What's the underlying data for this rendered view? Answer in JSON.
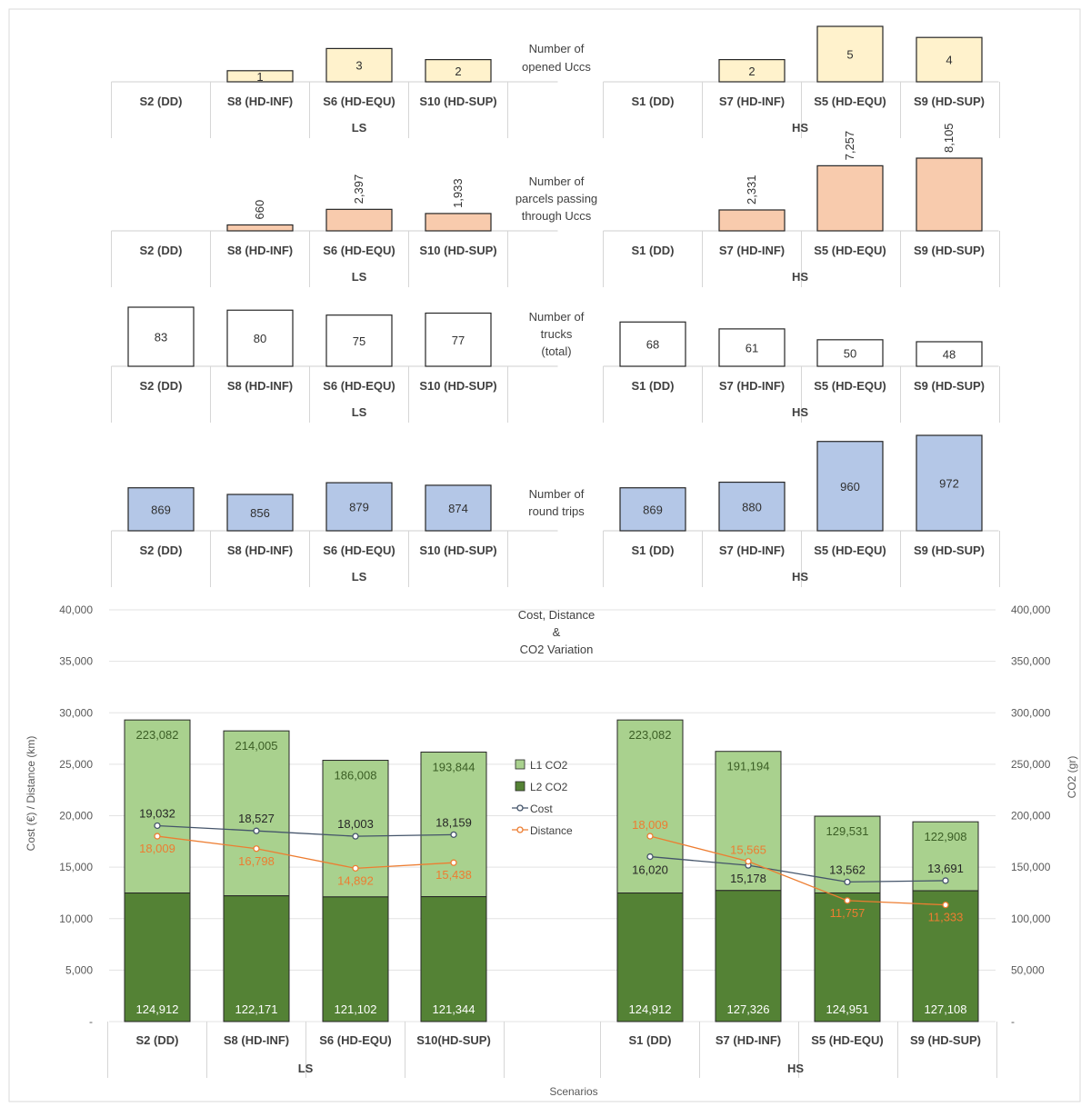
{
  "chart_data": [
    {
      "type": "bar",
      "title": "Number of opened Uccs",
      "groups": [
        {
          "label": "LS",
          "categories": [
            "S2 (DD)",
            "S8 (HD-INF)",
            "S6 (HD-EQU)",
            "S10 (HD-SUP)"
          ],
          "values": [
            null,
            1,
            3,
            2
          ]
        },
        {
          "label": "HS",
          "categories": [
            "S1 (DD)",
            "S7 (HD-INF)",
            "S5 (HD-EQU)",
            "S9 (HD-SUP)"
          ],
          "values": [
            null,
            2,
            5,
            4
          ]
        }
      ],
      "bar_color": "#fff2cc",
      "label_rotation": 0
    },
    {
      "type": "bar",
      "title": "Number of parcels passing through Uccs",
      "groups": [
        {
          "label": "LS",
          "categories": [
            "S2 (DD)",
            "S8 (HD-INF)",
            "S6 (HD-EQU)",
            "S10 (HD-SUP)"
          ],
          "values": [
            null,
            660,
            2397,
            1933
          ]
        },
        {
          "label": "HS",
          "categories": [
            "S1 (DD)",
            "S7 (HD-INF)",
            "S5 (HD-EQU)",
            "S9 (HD-SUP)"
          ],
          "values": [
            null,
            2331,
            7257,
            8105
          ]
        }
      ],
      "value_labels": {
        "LS": [
          "",
          "660",
          "2,397",
          "1,933"
        ],
        "HS": [
          "",
          "2,331",
          "7,257",
          "8,105"
        ]
      },
      "bar_color": "#f8cbad",
      "label_rotation": -90
    },
    {
      "type": "bar",
      "title": "Number of trucks (total)",
      "groups": [
        {
          "label": "LS",
          "categories": [
            "S2 (DD)",
            "S8 (HD-INF)",
            "S6 (HD-EQU)",
            "S10 (HD-SUP)"
          ],
          "values": [
            83,
            80,
            75,
            77
          ]
        },
        {
          "label": "HS",
          "categories": [
            "S1 (DD)",
            "S7 (HD-INF)",
            "S5 (HD-EQU)",
            "S9 (HD-SUP)"
          ],
          "values": [
            68,
            61,
            50,
            48
          ]
        }
      ],
      "bar_color": "#ffffff",
      "label_rotation": 0
    },
    {
      "type": "bar",
      "title": "Number of round trips",
      "groups": [
        {
          "label": "LS",
          "categories": [
            "S2 (DD)",
            "S8 (HD-INF)",
            "S6 (HD-EQU)",
            "S10 (HD-SUP)"
          ],
          "values": [
            869,
            856,
            879,
            874
          ]
        },
        {
          "label": "HS",
          "categories": [
            "S1 (DD)",
            "S7 (HD-INF)",
            "S5 (HD-EQU)",
            "S9 (HD-SUP)"
          ],
          "values": [
            869,
            880,
            960,
            972
          ]
        }
      ],
      "bar_color": "#b4c7e7",
      "label_rotation": 0
    },
    {
      "type": "bar",
      "title": "Cost, Distance & CO2 Variation",
      "title_lines": [
        "Cost, Distance",
        "&",
        "CO2 Variation"
      ],
      "xlabel": "Scenarios",
      "ylabel": "Cost (€) / Distance (km)",
      "y2label": "CO2 (gr)",
      "ylim": [
        0,
        40000
      ],
      "y2lim": [
        0,
        400000
      ],
      "yticks": [
        "-",
        "5,000",
        "10,000",
        "15,000",
        "20,000",
        "25,000",
        "30,000",
        "35,000",
        "40,000"
      ],
      "y2ticks": [
        "-",
        "50,000",
        "100,000",
        "150,000",
        "200,000",
        "250,000",
        "300,000",
        "350,000",
        "400,000"
      ],
      "grid": true,
      "legend_position": "center",
      "groups": [
        {
          "label": "LS",
          "categories": [
            "S2 (DD)",
            "S8 (HD-INF)",
            "S6 (HD-EQU)",
            "S10(HD-SUP)"
          ]
        },
        {
          "label": "HS",
          "categories": [
            "S1 (DD)",
            "S7 (HD-INF)",
            "S5 (HD-EQU)",
            "S9 (HD-SUP)"
          ]
        }
      ],
      "series": [
        {
          "name": "L1 CO2",
          "type": "stacked-bar",
          "axis": "right",
          "color": "#a9d18e",
          "values": {
            "LS": [
              223082,
              214005,
              186008,
              193844
            ],
            "HS": [
              223082,
              191194,
              129531,
              122908
            ]
          },
          "labels": {
            "LS": [
              "223,082",
              "214,005",
              "186,008",
              "193,844"
            ],
            "HS": [
              "223,082",
              "191,194",
              "129,531",
              "122,908"
            ]
          }
        },
        {
          "name": "L2 CO2",
          "type": "stacked-bar",
          "axis": "right",
          "color": "#548235",
          "values": {
            "LS": [
              124912,
              122171,
              121102,
              121344
            ],
            "HS": [
              124912,
              127326,
              124951,
              127108
            ]
          },
          "labels": {
            "LS": [
              "124,912",
              "122,171",
              "121,102",
              "121,344"
            ],
            "HS": [
              "124,912",
              "127,326",
              "124,951",
              "127,108"
            ]
          }
        },
        {
          "name": "Cost",
          "type": "line",
          "axis": "left",
          "color": "#44546a",
          "values": {
            "LS": [
              19032,
              18527,
              18003,
              18159
            ],
            "HS": [
              16020,
              15178,
              13562,
              13691
            ]
          },
          "labels": {
            "LS": [
              "19,032",
              "18,527",
              "18,003",
              "18,159"
            ],
            "HS": [
              "16,020",
              "15,178",
              "13,562",
              "13,691"
            ]
          }
        },
        {
          "name": "Distance",
          "type": "line",
          "axis": "left",
          "color": "#ed7d31",
          "values": {
            "LS": [
              18009,
              16798,
              14892,
              15438
            ],
            "HS": [
              18009,
              15565,
              11757,
              11333
            ]
          },
          "labels": {
            "LS": [
              "18,009",
              "16,798",
              "14,892",
              "15,438"
            ],
            "HS": [
              "18,009",
              "15,565",
              "11,757",
              "11,333"
            ]
          }
        }
      ]
    }
  ]
}
